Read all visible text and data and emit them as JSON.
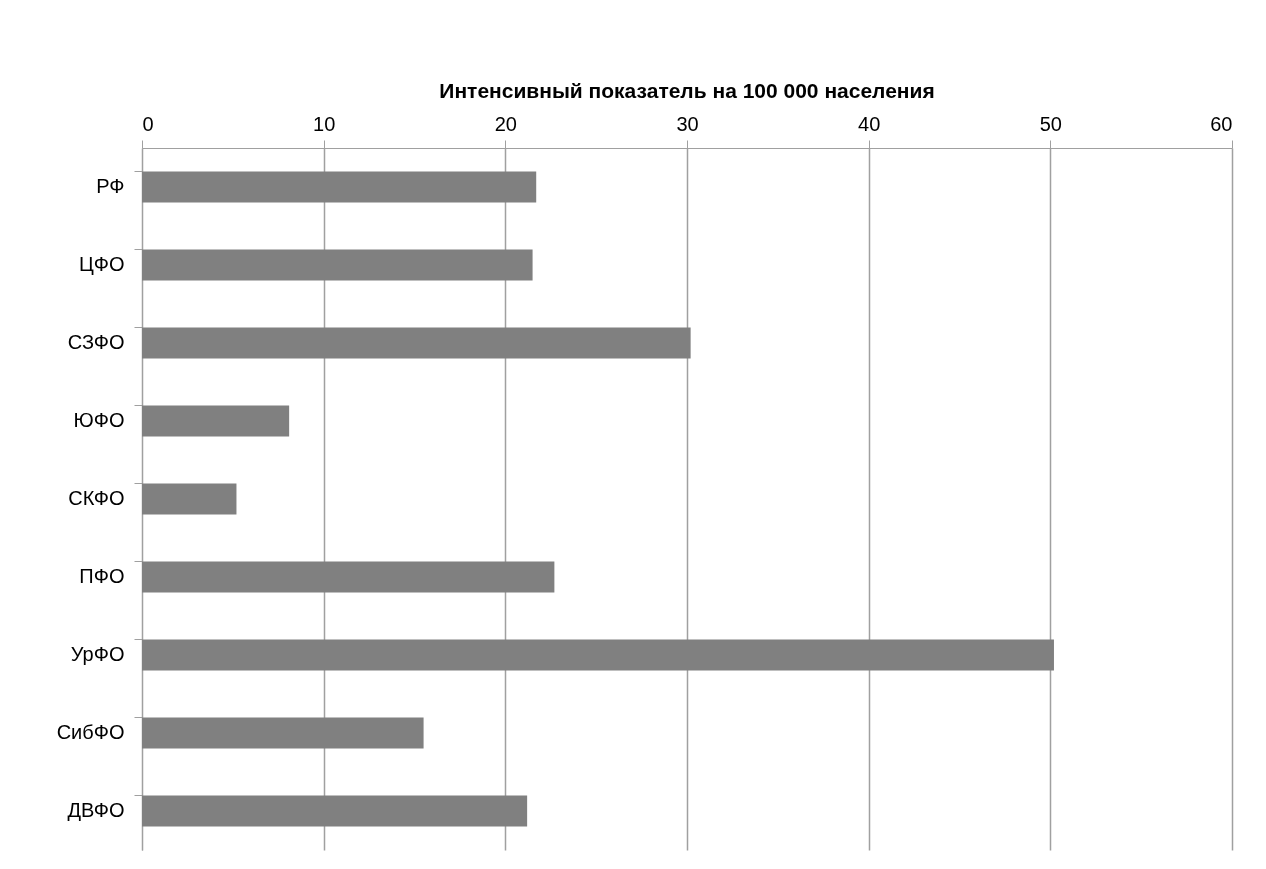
{
  "chart_data": {
    "type": "bar",
    "orientation": "horizontal",
    "title": "Интенсивный показатель на 100 000 населения",
    "categories": [
      "РФ",
      "ЦФО",
      "СЗФО",
      "ЮФО",
      "СКФО",
      "ПФО",
      "УрФО",
      "СибФО",
      "ДВФО"
    ],
    "values": [
      21.7,
      21.5,
      30.2,
      8.1,
      5.2,
      22.7,
      50.2,
      15.5,
      21.2
    ],
    "color": "#808080",
    "xlim": [
      0,
      60
    ],
    "xticks": [
      0,
      10,
      20,
      30,
      40,
      50,
      60
    ],
    "grid": "x"
  }
}
